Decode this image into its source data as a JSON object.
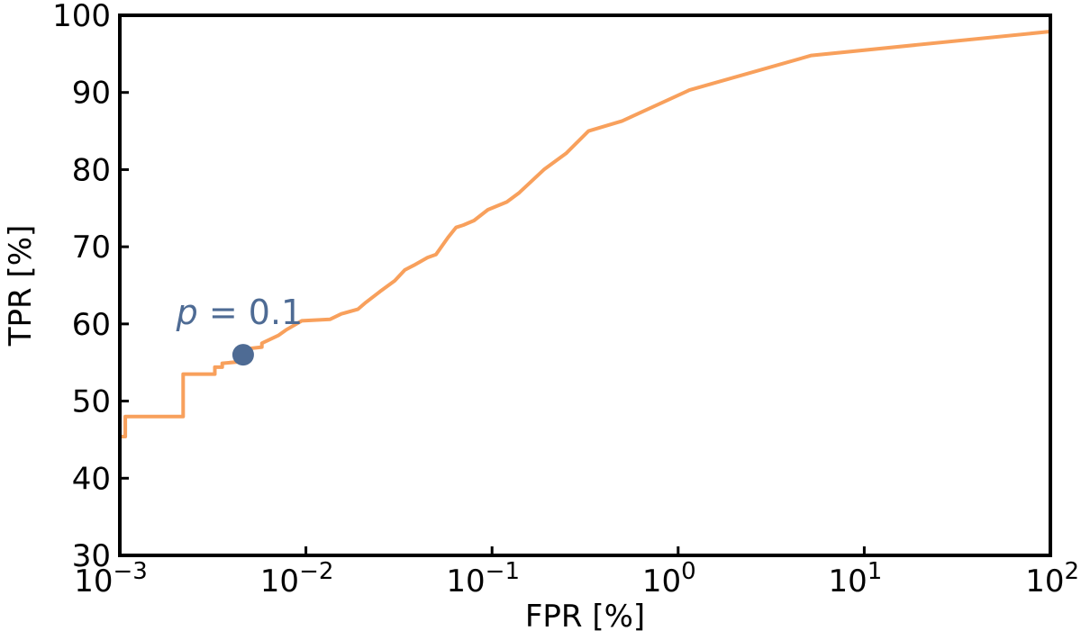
{
  "chart_data": {
    "type": "line",
    "xlabel": "FPR [%]",
    "ylabel": "TPR [%]",
    "xscale": "log",
    "xlim": [
      0.001,
      100
    ],
    "ylim": [
      30,
      100
    ],
    "grid": false,
    "x_ticks": [
      {
        "value": 0.001,
        "base": "10",
        "exp": "−3"
      },
      {
        "value": 0.01,
        "base": "10",
        "exp": "−2"
      },
      {
        "value": 0.1,
        "base": "10",
        "exp": "−1"
      },
      {
        "value": 1,
        "base": "10",
        "exp": "0"
      },
      {
        "value": 10,
        "base": "10",
        "exp": "1"
      },
      {
        "value": 100,
        "base": "10",
        "exp": "2"
      }
    ],
    "y_ticks": [
      {
        "value": 30,
        "label": "30"
      },
      {
        "value": 40,
        "label": "40"
      },
      {
        "value": 50,
        "label": "50"
      },
      {
        "value": 60,
        "label": "60"
      },
      {
        "value": 70,
        "label": "70"
      },
      {
        "value": 80,
        "label": "80"
      },
      {
        "value": 90,
        "label": "90"
      },
      {
        "value": 100,
        "label": "100"
      }
    ],
    "series": [
      {
        "color": "#f8a05c",
        "x": [
          0.00102,
          0.00107,
          0.00107,
          0.00219,
          0.00219,
          0.00324,
          0.00324,
          0.00355,
          0.00355,
          0.0049,
          0.0049,
          0.0058,
          0.0058,
          0.0071,
          0.0078,
          0.0095,
          0.0135,
          0.0155,
          0.019,
          0.021,
          0.025,
          0.03,
          0.034,
          0.038,
          0.045,
          0.05,
          0.058,
          0.064,
          0.07,
          0.08,
          0.095,
          0.12,
          0.14,
          0.19,
          0.25,
          0.33,
          0.5,
          1.15,
          5.2,
          100
        ],
        "y": [
          45.4,
          45.4,
          48.0,
          48.0,
          53.5,
          53.5,
          54.4,
          54.4,
          54.9,
          55.2,
          56.8,
          57.0,
          57.5,
          58.5,
          59.2,
          60.4,
          60.6,
          61.3,
          61.9,
          62.8,
          64.2,
          65.6,
          67.0,
          67.6,
          68.6,
          69.0,
          71.2,
          72.5,
          72.8,
          73.4,
          74.8,
          75.8,
          77.0,
          80.0,
          82.1,
          85.0,
          86.3,
          90.3,
          94.8,
          97.9
        ]
      }
    ],
    "annotation": {
      "label_italic": "p",
      "label_rest": " = 0.1",
      "x": 0.0046,
      "y": 56.0,
      "color": "#4e6b94"
    }
  }
}
